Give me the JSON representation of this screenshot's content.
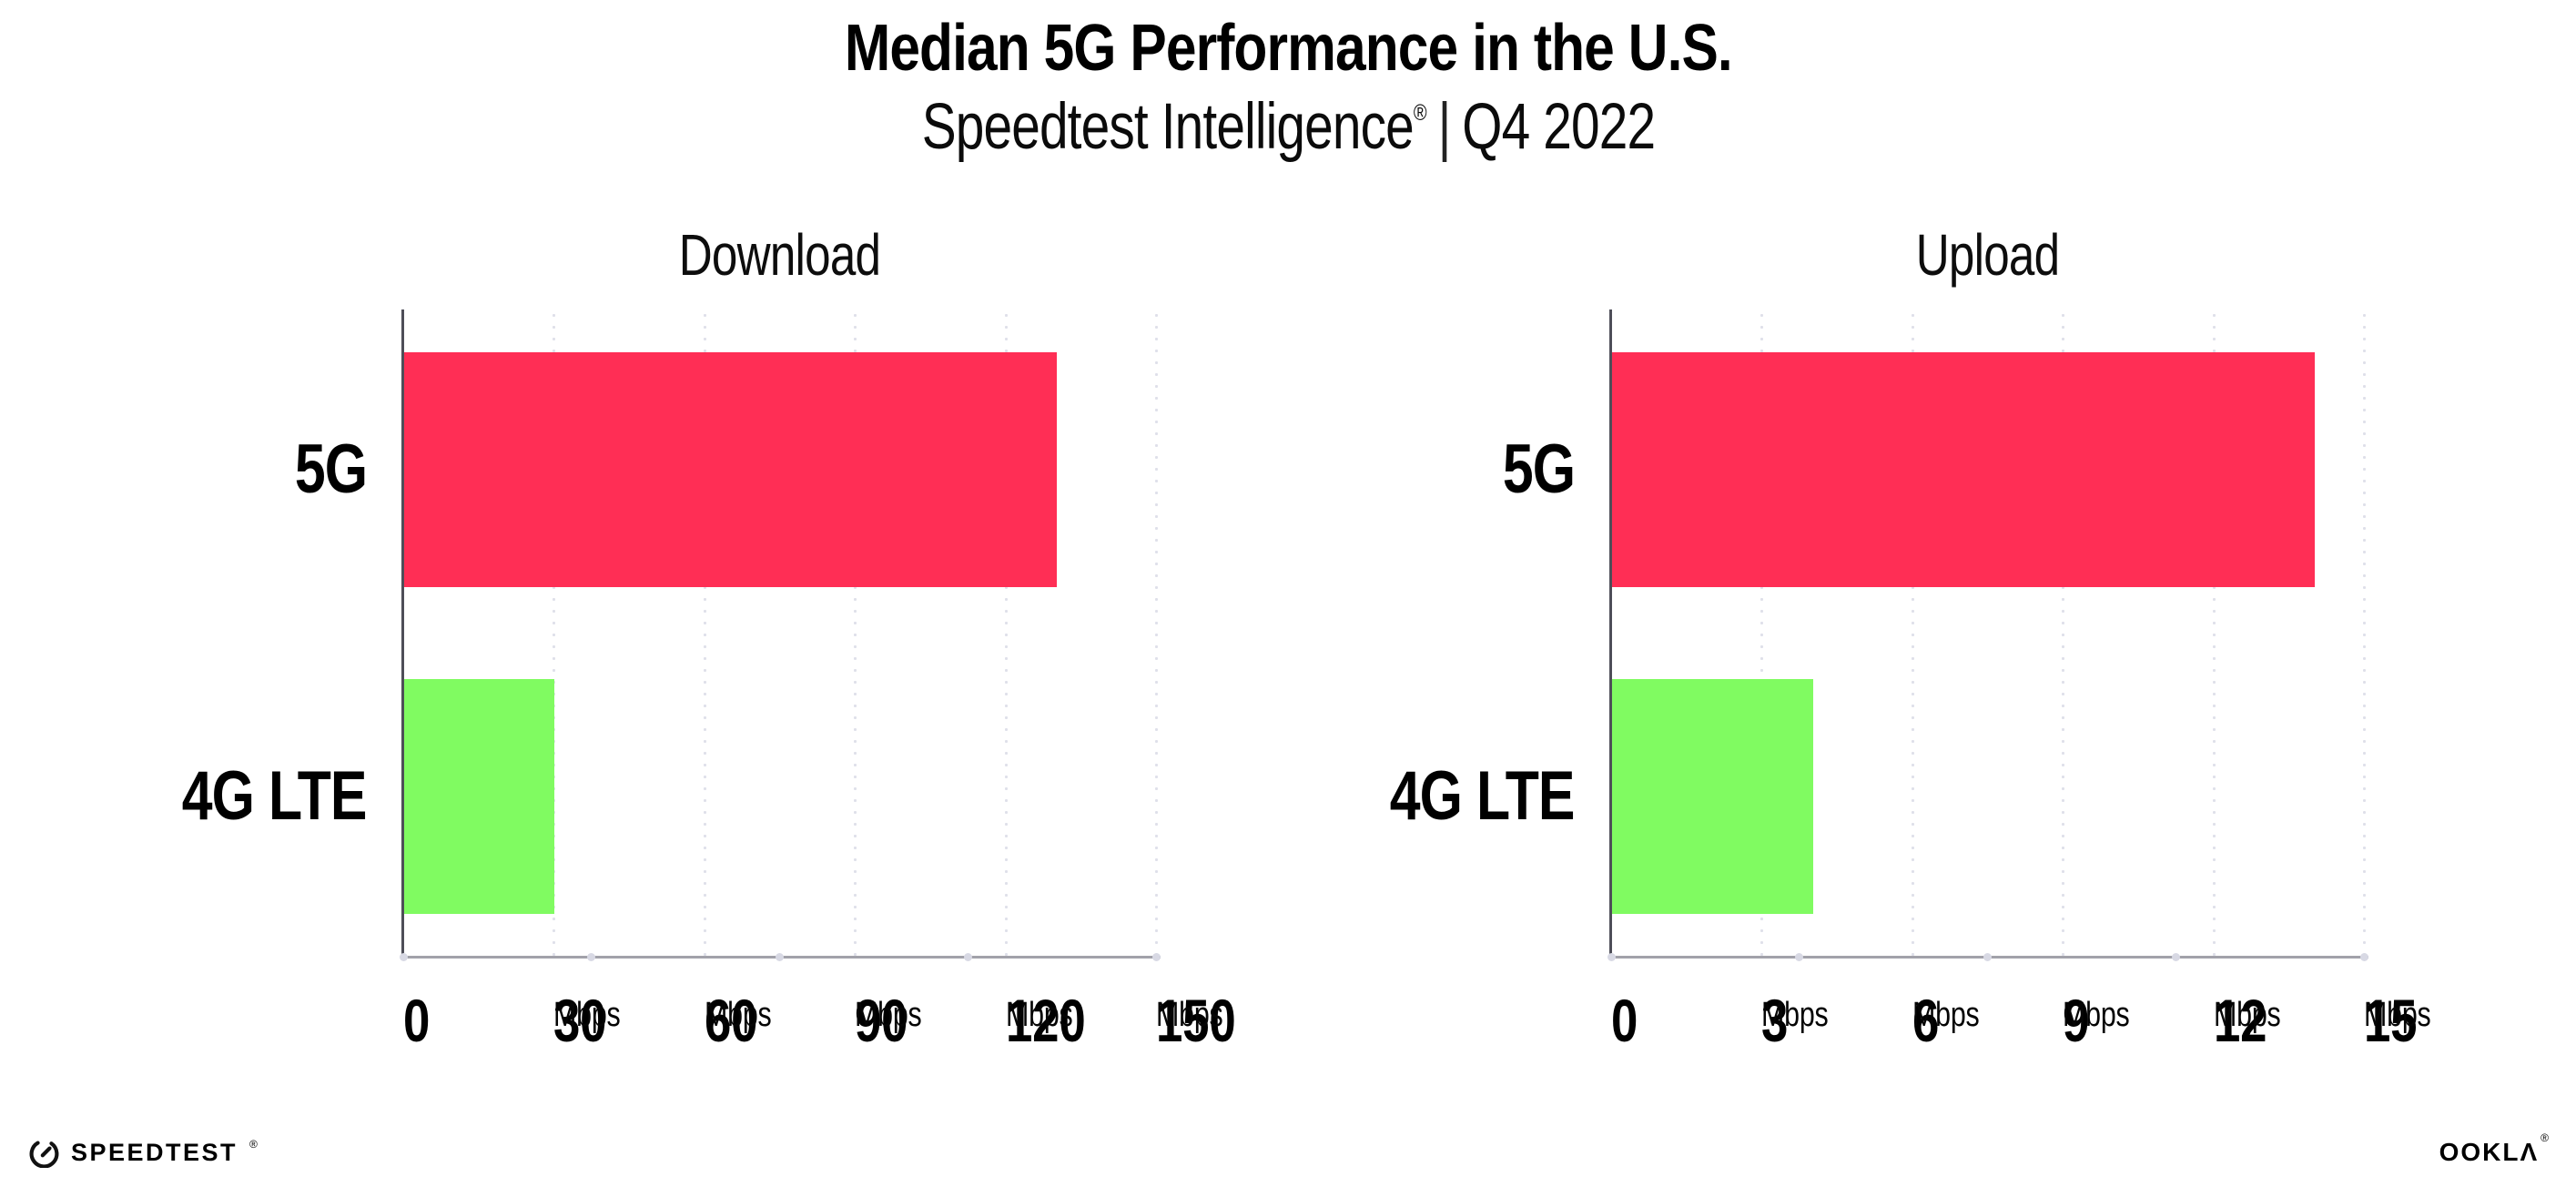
{
  "header": {
    "title": "Median 5G Performance in the U.S.",
    "subtitle_product": "Speedtest Intelligence",
    "registered_mark": "®",
    "separator": "|",
    "subtitle_period": "Q4 2022"
  },
  "chart_data": [
    {
      "type": "bar",
      "orientation": "horizontal",
      "title": "Download",
      "categories": [
        "5G",
        "4G LTE"
      ],
      "values": [
        130,
        30
      ],
      "unit": "Mbps",
      "xlim": [
        0,
        150
      ],
      "xticks": [
        0,
        30,
        60,
        90,
        120,
        150
      ],
      "tick_unit_label": "Mbps",
      "zero_tick_shows_unit": false,
      "bar_colors": [
        "#ff2e55",
        "#80fb61"
      ],
      "grid": "dotted-vertical",
      "legend": "none"
    },
    {
      "type": "bar",
      "orientation": "horizontal",
      "title": "Upload",
      "categories": [
        "5G",
        "4G LTE"
      ],
      "values": [
        14,
        4
      ],
      "unit": "Mbps",
      "xlim": [
        0,
        15
      ],
      "xticks": [
        0,
        3,
        6,
        9,
        12,
        15
      ],
      "tick_unit_label": "Mbps",
      "zero_tick_shows_unit": false,
      "bar_colors": [
        "#ff2e55",
        "#80fb61"
      ],
      "grid": "dotted-vertical",
      "legend": "none"
    }
  ],
  "footer": {
    "speedtest_label": "SPEEDTEST",
    "speedtest_mark": "®",
    "ookla_label": "OOKLΛ",
    "ookla_mark": "®"
  }
}
